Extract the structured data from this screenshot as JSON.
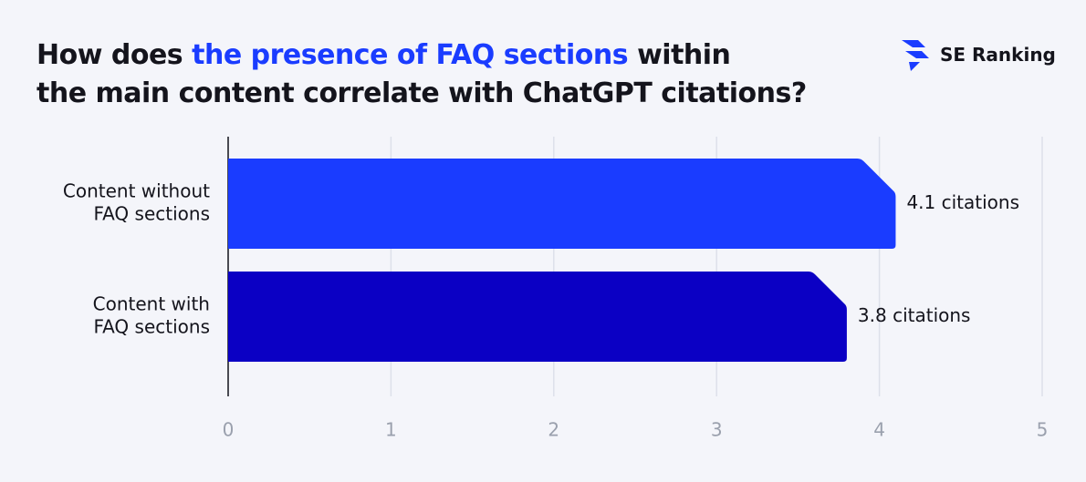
{
  "chart_data": {
    "type": "hbar",
    "title": [
      "How does",
      "the presence of FAQ sections",
      "within",
      "the main content correlate with ChatGPT citations?"
    ],
    "brand": "SE Ranking",
    "categories": [
      [
        "Content without",
        "FAQ sections"
      ],
      [
        "Content with",
        "FAQ sections"
      ]
    ],
    "series": [
      {
        "name": null,
        "colors": [
          "#1a3cff",
          "#0b00c4"
        ],
        "values": [
          4.1,
          3.8
        ],
        "value_labels": [
          "4.1 citations",
          "3.8 citations"
        ]
      }
    ],
    "xlim": [
      0,
      5
    ],
    "xticks": [
      0,
      1,
      2,
      3,
      4,
      5
    ],
    "grid": true
  }
}
